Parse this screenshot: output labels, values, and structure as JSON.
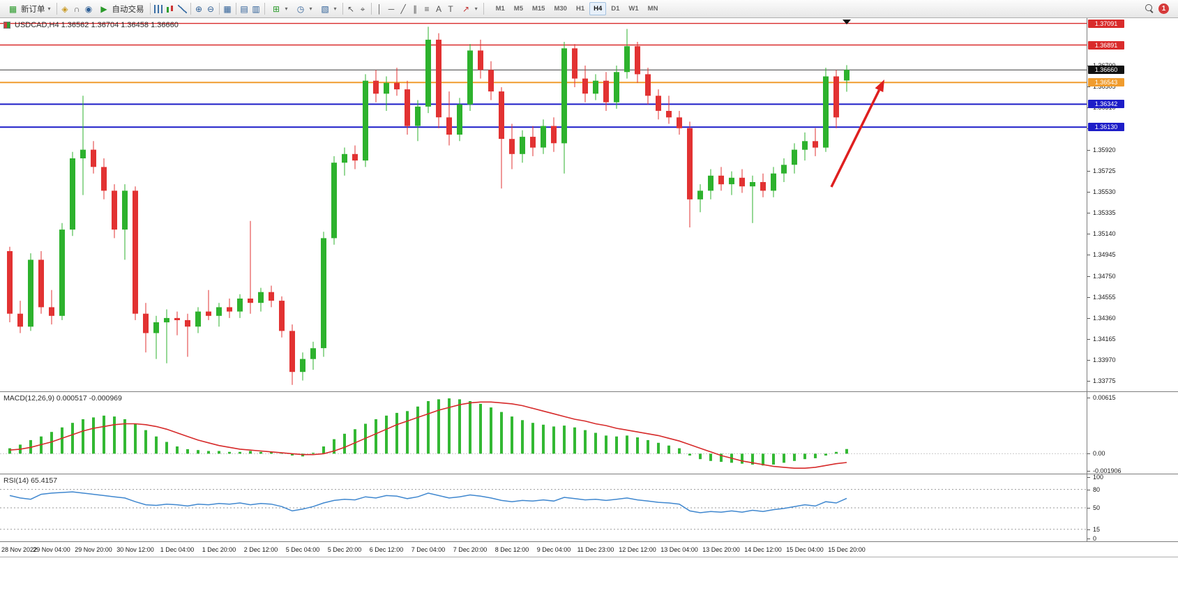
{
  "toolbar": {
    "new_order_label": "新订单",
    "auto_trading_label": "自动交易",
    "timeframes": [
      "M1",
      "M5",
      "M15",
      "M30",
      "H1",
      "H4",
      "D1",
      "W1",
      "MN"
    ],
    "active_timeframe": "H4",
    "notification_badge": "1",
    "icons": {
      "new_order_icon": "▦",
      "dropdown": "▾",
      "compass_icon": "◈",
      "headset_icon": "∩",
      "globe_icon": "◉",
      "autotrading_icon": "▶",
      "zoom_in_icon": "⊕",
      "zoom_out_icon": "⊖",
      "tile_windows_icon": "▦",
      "navigator_icon": "▤",
      "data_window_icon": "▥",
      "new_chart_icon": "⊞",
      "periods_icon": "◷",
      "templates_icon": "▧",
      "cursor_icon": "↖",
      "crosshair_icon": "⌖",
      "vline_icon": "│",
      "hline_icon": "─",
      "trendline_icon": "╱",
      "channel_icon": "∥",
      "fibo_icon": "≡",
      "text_icon": "A",
      "label_icon": "T",
      "arrows_icon": "↗"
    }
  },
  "chart": {
    "symbol_title": "USDCAD,H4 1.36562 1.36704 1.36458 1.36660",
    "scale": {
      "top": 1.3714,
      "bottom": 1.3368
    },
    "price_axis_labels": [
      "1.36700",
      "1.36505",
      "1.36310",
      "1.36115",
      "1.35920",
      "1.35725",
      "1.35530",
      "1.35335",
      "1.35140",
      "1.34945",
      "1.34750",
      "1.34555",
      "1.34360",
      "1.34165",
      "1.33970",
      "1.33775"
    ],
    "price_tags": [
      {
        "label": "1.37091",
        "price": 1.37091,
        "bg": "#d92b2b",
        "line": "#d92b2b",
        "width": 1.4
      },
      {
        "label": "1.36891",
        "price": 1.36891,
        "bg": "#d92b2b",
        "line": "#d92b2b",
        "width": 1.4
      },
      {
        "label": "1.36660",
        "price": 1.3666,
        "bg": "#111111",
        "line": "#3a3a3a",
        "width": 1
      },
      {
        "label": "1.36543",
        "price": 1.36543,
        "bg": "#f09c2e",
        "line": "#f09c2e",
        "width": 2
      },
      {
        "label": "1.36342",
        "price": 1.36342,
        "bg": "#1d1dc8",
        "line": "#1d1dc8",
        "width": 2
      },
      {
        "label": "1.36130",
        "price": 1.3613,
        "bg": "#1d1dc8",
        "line": "#1d1dc8",
        "width": 2
      }
    ],
    "time_axis_labels": [
      "28 Nov 2022",
      "29 Nov 04:00",
      "29 Nov 20:00",
      "30 Nov 12:00",
      "1 Dec 04:00",
      "1 Dec 20:00",
      "2 Dec 12:00",
      "5 Dec 04:00",
      "5 Dec 20:00",
      "6 Dec 12:00",
      "7 Dec 04:00",
      "7 Dec 20:00",
      "8 Dec 12:00",
      "9 Dec 04:00",
      "11 Dec 23:00",
      "12 Dec 12:00",
      "13 Dec 04:00",
      "13 Dec 20:00",
      "14 Dec 12:00",
      "15 Dec 04:00",
      "15 Dec 20:00"
    ],
    "arrow": {
      "from": [
        1192,
        242
      ],
      "to": [
        1268,
        88
      ],
      "color": "#df1f1f"
    }
  },
  "chart_data": {
    "type": "candlestick",
    "symbol": "USDCAD",
    "timeframe": "H4",
    "ohlc_current": {
      "open": "1.36562",
      "high": "1.36704",
      "low": "1.36458",
      "close": "1.36660"
    },
    "style": {
      "bull": "#2db22d",
      "bear": "#e23232"
    },
    "candles": [
      [
        1.3498,
        1.3502,
        1.3432,
        1.344
      ],
      [
        1.344,
        1.3452,
        1.3422,
        1.3428
      ],
      [
        1.3428,
        1.3496,
        1.3424,
        1.349
      ],
      [
        1.349,
        1.3498,
        1.344,
        1.3446
      ],
      [
        1.3446,
        1.3462,
        1.343,
        1.3438
      ],
      [
        1.3438,
        1.3524,
        1.3434,
        1.3518
      ],
      [
        1.3518,
        1.359,
        1.3512,
        1.3584
      ],
      [
        1.3584,
        1.3642,
        1.355,
        1.3592
      ],
      [
        1.3592,
        1.36,
        1.357,
        1.3576
      ],
      [
        1.3576,
        1.3584,
        1.3546,
        1.3554
      ],
      [
        1.3554,
        1.356,
        1.351,
        1.3518
      ],
      [
        1.3518,
        1.356,
        1.349,
        1.3554
      ],
      [
        1.3554,
        1.3558,
        1.3434,
        1.344
      ],
      [
        1.344,
        1.345,
        1.3404,
        1.3422
      ],
      [
        1.3422,
        1.3438,
        1.3398,
        1.3432
      ],
      [
        1.3432,
        1.3444,
        1.3394,
        1.3436
      ],
      [
        1.3436,
        1.3442,
        1.342,
        1.3434
      ],
      [
        1.3434,
        1.344,
        1.34,
        1.3428
      ],
      [
        1.3428,
        1.3446,
        1.3422,
        1.3442
      ],
      [
        1.3442,
        1.3462,
        1.3434,
        1.3438
      ],
      [
        1.3438,
        1.345,
        1.3428,
        1.3446
      ],
      [
        1.3446,
        1.3454,
        1.3436,
        1.3442
      ],
      [
        1.3442,
        1.3458,
        1.3436,
        1.3454
      ],
      [
        1.3454,
        1.3526,
        1.344,
        1.345
      ],
      [
        1.345,
        1.3464,
        1.3442,
        1.346
      ],
      [
        1.346,
        1.3466,
        1.3446,
        1.3452
      ],
      [
        1.3452,
        1.3456,
        1.3418,
        1.3424
      ],
      [
        1.3424,
        1.343,
        1.3374,
        1.3386
      ],
      [
        1.3386,
        1.3404,
        1.3378,
        1.3398
      ],
      [
        1.3398,
        1.3414,
        1.3388,
        1.3408
      ],
      [
        1.3408,
        1.3516,
        1.34,
        1.351
      ],
      [
        1.351,
        1.3586,
        1.3504,
        1.358
      ],
      [
        1.358,
        1.3594,
        1.3568,
        1.3588
      ],
      [
        1.3588,
        1.3596,
        1.3574,
        1.3582
      ],
      [
        1.3582,
        1.3662,
        1.3576,
        1.3656
      ],
      [
        1.3656,
        1.3666,
        1.3636,
        1.3644
      ],
      [
        1.3644,
        1.366,
        1.3628,
        1.3654
      ],
      [
        1.3654,
        1.3668,
        1.3642,
        1.3648
      ],
      [
        1.3648,
        1.3656,
        1.3606,
        1.3614
      ],
      [
        1.3614,
        1.3638,
        1.36,
        1.3632
      ],
      [
        1.3632,
        1.3706,
        1.3626,
        1.3694
      ],
      [
        1.3694,
        1.37,
        1.3612,
        1.3622
      ],
      [
        1.3622,
        1.3646,
        1.3596,
        1.3606
      ],
      [
        1.3606,
        1.364,
        1.36,
        1.3634
      ],
      [
        1.3634,
        1.369,
        1.3628,
        1.3684
      ],
      [
        1.3684,
        1.3694,
        1.3658,
        1.3666
      ],
      [
        1.3666,
        1.3674,
        1.3638,
        1.3646
      ],
      [
        1.3646,
        1.365,
        1.3556,
        1.3602
      ],
      [
        1.3602,
        1.3616,
        1.3574,
        1.3588
      ],
      [
        1.3588,
        1.361,
        1.358,
        1.3604
      ],
      [
        1.3604,
        1.3614,
        1.3586,
        1.3594
      ],
      [
        1.3594,
        1.362,
        1.3588,
        1.3614
      ],
      [
        1.3614,
        1.3622,
        1.359,
        1.3598
      ],
      [
        1.3598,
        1.3692,
        1.357,
        1.3686
      ],
      [
        1.3686,
        1.369,
        1.365,
        1.3658
      ],
      [
        1.3658,
        1.367,
        1.3636,
        1.3644
      ],
      [
        1.3644,
        1.3662,
        1.3638,
        1.3656
      ],
      [
        1.3656,
        1.3664,
        1.3628,
        1.3636
      ],
      [
        1.3636,
        1.367,
        1.363,
        1.3664
      ],
      [
        1.3664,
        1.3704,
        1.3658,
        1.3688
      ],
      [
        1.3688,
        1.3692,
        1.3654,
        1.3662
      ],
      [
        1.3662,
        1.3668,
        1.3634,
        1.3642
      ],
      [
        1.3642,
        1.3648,
        1.362,
        1.3628
      ],
      [
        1.3628,
        1.3642,
        1.3616,
        1.3622
      ],
      [
        1.3622,
        1.3628,
        1.3606,
        1.3612
      ],
      [
        1.3612,
        1.3618,
        1.352,
        1.3546
      ],
      [
        1.3546,
        1.356,
        1.3534,
        1.3554
      ],
      [
        1.3554,
        1.3574,
        1.3546,
        1.3568
      ],
      [
        1.3568,
        1.3576,
        1.3554,
        1.356
      ],
      [
        1.356,
        1.3572,
        1.355,
        1.3566
      ],
      [
        1.3566,
        1.3574,
        1.3552,
        1.3558
      ],
      [
        1.3558,
        1.3568,
        1.3524,
        1.3562
      ],
      [
        1.3562,
        1.357,
        1.3548,
        1.3554
      ],
      [
        1.3554,
        1.3576,
        1.3548,
        1.357
      ],
      [
        1.357,
        1.3584,
        1.3562,
        1.3578
      ],
      [
        1.3578,
        1.3598,
        1.357,
        1.3592
      ],
      [
        1.3592,
        1.3608,
        1.3582,
        1.36
      ],
      [
        1.36,
        1.3612,
        1.3586,
        1.3594
      ],
      [
        1.3594,
        1.3668,
        1.359,
        1.366
      ],
      [
        1.366,
        1.3666,
        1.3612,
        1.3622
      ],
      [
        1.36562,
        1.36704,
        1.36458,
        1.3666
      ]
    ],
    "macd": {
      "display_label": "MACD(12,26,9) 0.000517 -0.000969",
      "scale_max": 0.0068,
      "scale_min": -0.0022,
      "axis": [
        {
          "text": "0.00615",
          "value": 0.00615
        },
        {
          "text": "0.00",
          "value": 0
        },
        {
          "text": "-0.001906",
          "value": -0.001906
        }
      ],
      "histogram_color": "#33b833",
      "signal_color": "#d62a2a",
      "histogram": [
        0.0006,
        0.001,
        0.0015,
        0.0019,
        0.0024,
        0.0029,
        0.0034,
        0.0038,
        0.004,
        0.0042,
        0.0041,
        0.0038,
        0.0033,
        0.0026,
        0.0019,
        0.0013,
        0.0008,
        0.0005,
        0.0004,
        0.0003,
        0.0003,
        0.0002,
        0.0002,
        0.0003,
        0.0002,
        0.0002,
        0.0001,
        -0.0002,
        -0.0003,
        0.0001,
        0.0008,
        0.0016,
        0.0022,
        0.0027,
        0.0033,
        0.0038,
        0.0042,
        0.0045,
        0.0047,
        0.0052,
        0.0058,
        0.006,
        0.0061,
        0.006,
        0.0058,
        0.0055,
        0.0051,
        0.0046,
        0.0041,
        0.0037,
        0.0034,
        0.0032,
        0.003,
        0.0031,
        0.0029,
        0.0026,
        0.0023,
        0.002,
        0.0019,
        0.002,
        0.0018,
        0.0015,
        0.0012,
        0.0009,
        0.0006,
        -0.0002,
        -0.0006,
        -0.0008,
        -0.0009,
        -0.001,
        -0.0011,
        -0.0012,
        -0.0013,
        -0.0012,
        -0.001,
        -0.0008,
        -0.0006,
        -0.0005,
        -0.0002,
        0.0002,
        0.000517
      ],
      "signal": [
        0.0004,
        0.0005,
        0.0007,
        0.001,
        0.0013,
        0.0017,
        0.0021,
        0.0025,
        0.0028,
        0.003,
        0.0032,
        0.0033,
        0.0033,
        0.0032,
        0.003,
        0.0027,
        0.0023,
        0.0019,
        0.0015,
        0.0012,
        0.0009,
        0.0007,
        0.0005,
        0.0004,
        0.0003,
        0.0002,
        0.0001,
        0.0,
        -0.0001,
        -0.0001,
        0.0,
        0.0003,
        0.0007,
        0.0012,
        0.0017,
        0.0022,
        0.0027,
        0.0032,
        0.0036,
        0.004,
        0.0044,
        0.0048,
        0.0051,
        0.0054,
        0.0056,
        0.0057,
        0.0057,
        0.0056,
        0.0055,
        0.0053,
        0.005,
        0.0047,
        0.0044,
        0.0041,
        0.0038,
        0.0036,
        0.0033,
        0.0031,
        0.0028,
        0.0026,
        0.0024,
        0.0022,
        0.002,
        0.0017,
        0.0014,
        0.001,
        0.0006,
        0.0002,
        -0.0002,
        -0.0005,
        -0.0008,
        -0.001,
        -0.0012,
        -0.0014,
        -0.0015,
        -0.0016,
        -0.0016,
        -0.0015,
        -0.0013,
        -0.0011,
        -0.000969
      ]
    },
    "rsi": {
      "display_label": "RSI(14) 65.4157",
      "line_color": "#3f87cf",
      "levels": [
        80,
        50,
        15
      ],
      "axis": [
        {
          "text": "100",
          "value": 100
        },
        {
          "text": "80",
          "value": 80
        },
        {
          "text": "50",
          "value": 50
        },
        {
          "text": "15",
          "value": 15
        },
        {
          "text": "0",
          "value": 0
        }
      ],
      "series": [
        70,
        66,
        64,
        72,
        74,
        75,
        76,
        74,
        72,
        70,
        68,
        66,
        60,
        55,
        54,
        56,
        55,
        53,
        56,
        55,
        57,
        56,
        58,
        55,
        57,
        56,
        52,
        45,
        48,
        52,
        58,
        62,
        64,
        63,
        68,
        66,
        70,
        69,
        65,
        68,
        74,
        70,
        66,
        68,
        71,
        69,
        66,
        62,
        60,
        62,
        61,
        63,
        61,
        67,
        65,
        63,
        64,
        62,
        64,
        66,
        63,
        61,
        59,
        58,
        56,
        45,
        42,
        44,
        43,
        45,
        43,
        46,
        44,
        47,
        49,
        52,
        55,
        53,
        60,
        58,
        65.4157
      ]
    }
  }
}
